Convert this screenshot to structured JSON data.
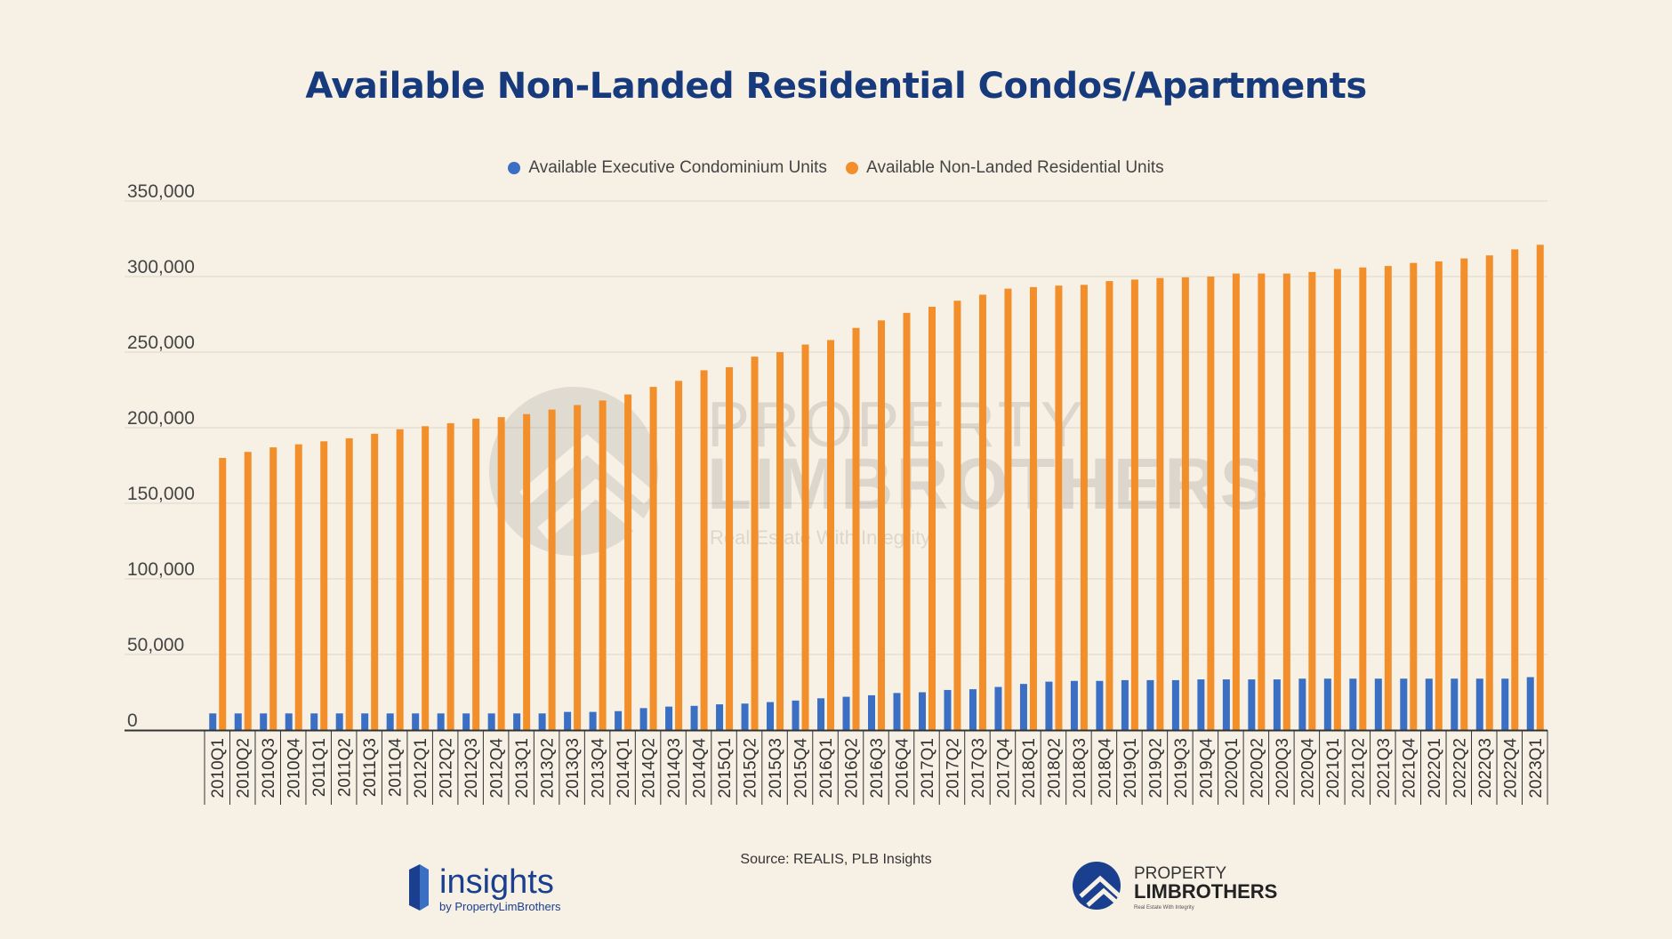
{
  "chart_data": {
    "type": "bar",
    "title": "Available Non-Landed Residential Condos/Apartments",
    "xlabel": "",
    "ylabel": "",
    "ylim": [
      0,
      350000
    ],
    "yticks": [
      "0",
      "50,000",
      "100,000",
      "150,000",
      "200,000",
      "250,000",
      "300,000",
      "350,000"
    ],
    "grid": true,
    "legend_position": "top",
    "categories": [
      "2010Q1",
      "2010Q2",
      "2010Q3",
      "2010Q4",
      "2011Q1",
      "2011Q2",
      "2011Q3",
      "2011Q4",
      "2012Q1",
      "2012Q2",
      "2012Q3",
      "2012Q4",
      "2013Q1",
      "2013Q2",
      "2013Q3",
      "2013Q4",
      "2014Q1",
      "2014Q2",
      "2014Q3",
      "2014Q4",
      "2015Q1",
      "2015Q2",
      "2015Q3",
      "2015Q4",
      "2016Q1",
      "2016Q2",
      "2016Q3",
      "2016Q4",
      "2017Q1",
      "2017Q2",
      "2017Q3",
      "2017Q4",
      "2018Q1",
      "2018Q2",
      "2018Q3",
      "2018Q4",
      "2019Q1",
      "2019Q2",
      "2019Q3",
      "2019Q4",
      "2020Q1",
      "2020Q2",
      "2020Q3",
      "2020Q4",
      "2021Q1",
      "2021Q2",
      "2021Q3",
      "2021Q4",
      "2022Q1",
      "2022Q2",
      "2022Q3",
      "2022Q4",
      "2023Q1"
    ],
    "series": [
      {
        "name": "Available Executive Condominium Units",
        "color": "#3a6fc4",
        "values": [
          11000,
          11000,
          11000,
          11000,
          11000,
          11000,
          11000,
          11000,
          11000,
          11000,
          11000,
          11000,
          11000,
          11000,
          12000,
          12000,
          12500,
          14500,
          15500,
          16000,
          17000,
          17500,
          18500,
          19500,
          21000,
          22000,
          23000,
          24500,
          25000,
          26500,
          27000,
          28500,
          30500,
          32000,
          32500,
          32500,
          33000,
          33000,
          33000,
          33500,
          33500,
          33500,
          33500,
          34000,
          34000,
          34000,
          34000,
          34000,
          34000,
          34000,
          34000,
          34000,
          35000
        ]
      },
      {
        "name": "Available Non-Landed Residential Units",
        "color": "#f38f2a",
        "values": [
          180000,
          184000,
          187000,
          189000,
          191000,
          193000,
          196000,
          199000,
          201000,
          203000,
          206000,
          207000,
          209000,
          212000,
          215000,
          218000,
          222000,
          227000,
          231000,
          238000,
          240000,
          247000,
          250000,
          255000,
          258000,
          266000,
          271000,
          276000,
          280000,
          284000,
          288000,
          292000,
          293000,
          294000,
          294500,
          297000,
          298000,
          299000,
          299500,
          300000,
          302000,
          302000,
          302000,
          303000,
          305000,
          306000,
          307000,
          309000,
          310000,
          312000,
          314000,
          318000,
          321000
        ]
      }
    ]
  },
  "colors": {
    "background": "#f6f0e5",
    "title": "#163a7c",
    "grid": "#dcd6cc"
  },
  "footer": {
    "source": "Source: REALIS, PLB Insights",
    "insights_logo": {
      "word": "insights",
      "byline": "by PropertyLimBrothers"
    },
    "plb_logo": {
      "line1": "PROPERTY",
      "line2": "LIMBROTHERS",
      "tagline": "Real Estate With Integrity"
    }
  },
  "watermark": {
    "line1": "PROPERTY",
    "line2": "LIMBROTHERS",
    "tagline": "Real Estate With Integrity"
  }
}
